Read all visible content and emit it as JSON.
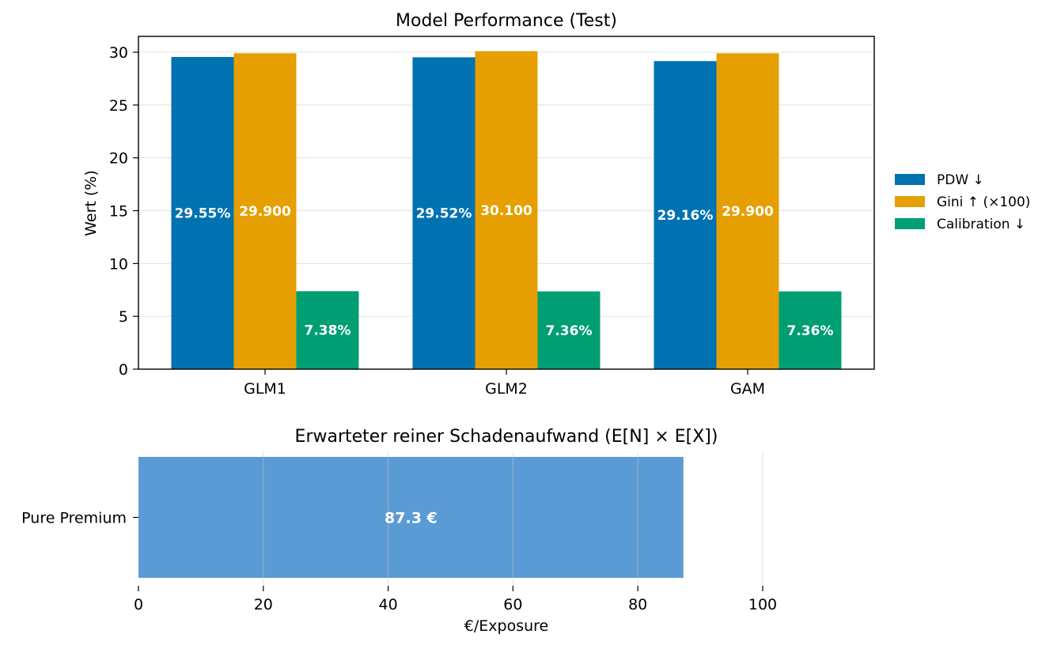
{
  "chart_data": [
    {
      "type": "bar",
      "title": "Model Performance (Test)",
      "xlabel": "",
      "ylabel": "Wert (%)",
      "categories": [
        "GLM1",
        "GLM2",
        "GAM"
      ],
      "ylim": [
        0,
        31.5
      ],
      "yticks": [
        0,
        5,
        10,
        15,
        20,
        25,
        30
      ],
      "grid": "y",
      "legend_position": "right",
      "series": [
        {
          "name": "PDW ↓",
          "color": "#0072B2",
          "values": [
            29.55,
            29.52,
            29.16
          ],
          "labels": [
            "29.55%",
            "29.52%",
            "29.16%"
          ]
        },
        {
          "name": "Gini ↑ (×100)",
          "color": "#E69F00",
          "values": [
            29.9,
            30.1,
            29.9
          ],
          "labels": [
            "29.900",
            "30.100",
            "29.900"
          ]
        },
        {
          "name": "Calibration ↓",
          "color": "#009E73",
          "values": [
            7.38,
            7.36,
            7.36
          ],
          "labels": [
            "7.38%",
            "7.36%",
            "7.36%"
          ]
        }
      ]
    },
    {
      "type": "bar",
      "orientation": "horizontal",
      "title": "Erwarteter reiner Schadenaufwand (E[N] × E[X])",
      "xlabel": "€/Exposure",
      "ylabel": "",
      "categories": [
        "Pure Premium"
      ],
      "xlim": [
        0,
        112
      ],
      "xticks": [
        0,
        20,
        40,
        60,
        80,
        100
      ],
      "grid": "x",
      "series": [
        {
          "name": "",
          "color": "#5B9BD5",
          "values": [
            87.3
          ],
          "labels": [
            "87.3 €"
          ]
        }
      ]
    }
  ]
}
